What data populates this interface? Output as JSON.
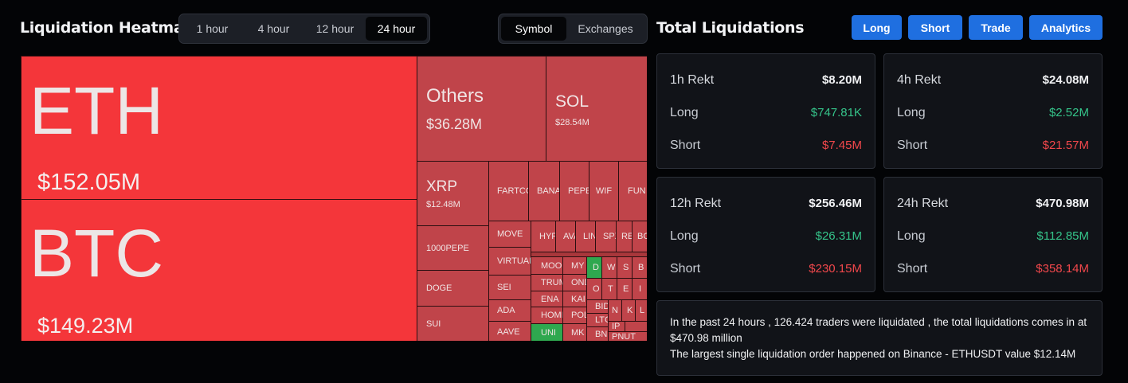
{
  "header": {
    "heatmap_title": "Liquidation Heatmap",
    "total_title": "Total Liquidations"
  },
  "time_tabs": [
    "1 hour",
    "4 hour",
    "12 hour",
    "24 hour"
  ],
  "active_time_tab": "24 hour",
  "mode_tabs": [
    "Symbol",
    "Exchanges"
  ],
  "active_mode_tab": "Symbol",
  "nav_buttons": {
    "long": "Long",
    "short": "Short",
    "trade": "Trade",
    "analytics": "Analytics"
  },
  "heatmap": {
    "eth": {
      "name": "ETH",
      "value": "$152.05M"
    },
    "btc": {
      "name": "BTC",
      "value": "$149.23M"
    },
    "others": {
      "name": "Others",
      "value": "$36.28M"
    },
    "sol": {
      "name": "SOL",
      "value": "$28.54M"
    },
    "xrp": {
      "name": "XRP",
      "value": "$12.48M"
    },
    "small": {
      "fartcoin": "FARTCOIN",
      "bananas": "BANANAS",
      "pepe": "PEPE",
      "wif": "WIF",
      "fun": "FUN",
      "pepe1000": "1000PEPE",
      "doge": "DOGE",
      "sui": "SUI",
      "move": "MOVE",
      "virtual": "VIRTUAL",
      "sei": "SEI",
      "ada": "ADA",
      "aave": "AAVE",
      "hype": "HYPE",
      "avax": "AVAX",
      "link": "LINK",
      "spx": "SPX",
      "re": "RE",
      "bo": "BO",
      "moo": "MOO",
      "my": "MY",
      "d": "D",
      "w": "W",
      "s": "S",
      "b": "B",
      "trump": "TRUMP",
      "ondo": "ONDO",
      "o": "O",
      "t": "T",
      "e": "E",
      "i": "I",
      "ena": "ENA",
      "kai": "KAI",
      "homer": "HOMER",
      "pol": "POL",
      "bid": "BID",
      "n": "N",
      "k": "K",
      "l": "L",
      "ltc": "LTC",
      "uni": "UNI",
      "mk": "MK",
      "ip": "IP",
      "bn": "BN",
      "pnut": "PNUT"
    }
  },
  "rekt": {
    "h1": {
      "title": "1h Rekt",
      "total": "$8.20M",
      "long_label": "Long",
      "long": "$747.81K",
      "short_label": "Short",
      "short": "$7.45M"
    },
    "h4": {
      "title": "4h Rekt",
      "total": "$24.08M",
      "long_label": "Long",
      "long": "$2.52M",
      "short_label": "Short",
      "short": "$21.57M"
    },
    "h12": {
      "title": "12h Rekt",
      "total": "$256.46M",
      "long_label": "Long",
      "long": "$26.31M",
      "short_label": "Short",
      "short": "$230.15M"
    },
    "h24": {
      "title": "24h Rekt",
      "total": "$470.98M",
      "long_label": "Long",
      "long": "$112.85M",
      "short_label": "Short",
      "short": "$358.14M"
    }
  },
  "summary": {
    "line1": "In the past 24 hours , 126.424 traders were liquidated , the total liquidations comes in at $470.98 million",
    "line2": "The largest single liquidation order happened on Binance - ETHUSDT value $12.14M"
  },
  "colors": {
    "long": "#35c48a",
    "short": "#f0474b",
    "accent": "#1f6fe0",
    "tile_large": "#f4363a",
    "tile": "#c0444a",
    "tile_green": "#2fa84f"
  }
}
